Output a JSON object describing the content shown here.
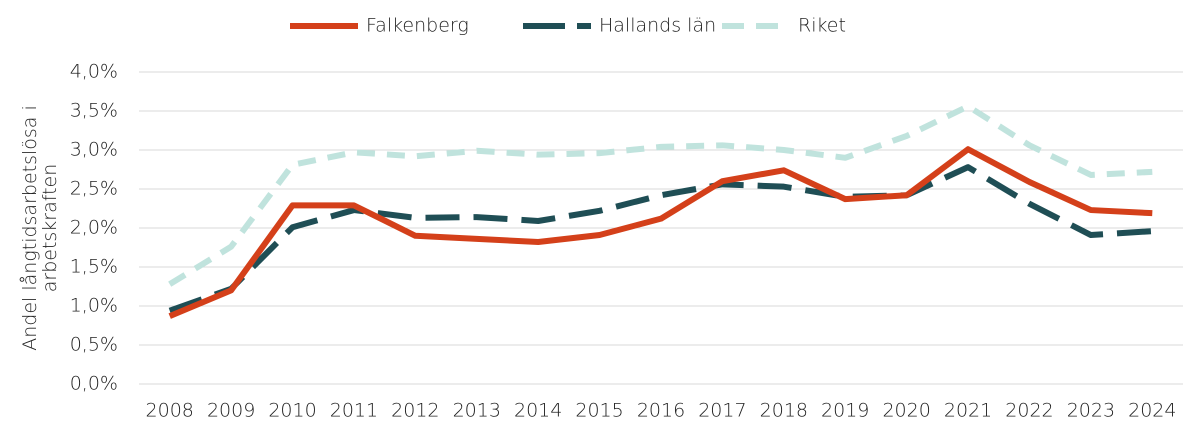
{
  "chart_data": {
    "type": "line",
    "y_label": [
      "Andel långtidsarbetslösa i",
      "arbetskraften"
    ],
    "categories": [
      "2008",
      "2009",
      "2010",
      "2011",
      "2012",
      "2013",
      "2014",
      "2015",
      "2016",
      "2017",
      "2018",
      "2019",
      "2020",
      "2021",
      "2022",
      "2023",
      "2024"
    ],
    "series": [
      {
        "name": "Falkenberg",
        "color": "#d4401a",
        "dash": "solid",
        "values": [
          0.87,
          1.2,
          2.29,
          2.29,
          1.9,
          1.86,
          1.82,
          1.91,
          2.12,
          2.6,
          2.74,
          2.37,
          2.42,
          3.01,
          2.59,
          2.23,
          2.19
        ]
      },
      {
        "name": "Hallands län",
        "color": "#1f4e55",
        "dash": "long",
        "values": [
          0.94,
          1.22,
          2.01,
          2.23,
          2.13,
          2.14,
          2.09,
          2.22,
          2.42,
          2.56,
          2.53,
          2.4,
          2.42,
          2.78,
          2.31,
          1.91,
          1.96
        ]
      },
      {
        "name": "Riket",
        "color": "#c0e3dd",
        "dash": "short",
        "values": [
          1.28,
          1.76,
          2.81,
          2.97,
          2.92,
          2.99,
          2.94,
          2.96,
          3.04,
          3.06,
          3.0,
          2.9,
          3.18,
          3.56,
          3.06,
          2.68,
          2.72
        ]
      }
    ],
    "ylim": [
      0,
      4.0
    ],
    "yticks": [
      {
        "value": 0,
        "label": "0,0%"
      },
      {
        "value": 0.5,
        "label": "0,5%"
      },
      {
        "value": 1.0,
        "label": "1,0%"
      },
      {
        "value": 1.5,
        "label": "1,5%"
      },
      {
        "value": 2.0,
        "label": "2,0%"
      },
      {
        "value": 2.5,
        "label": "2,5%"
      },
      {
        "value": 3.0,
        "label": "3,0%"
      },
      {
        "value": 3.5,
        "label": "3,5%"
      },
      {
        "value": 4.0,
        "label": "4,0%"
      }
    ],
    "grid": true,
    "legend": "top"
  }
}
